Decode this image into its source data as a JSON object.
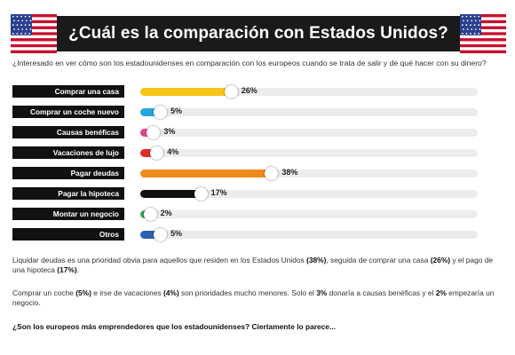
{
  "title": "¿Cuál es la comparación con Estados Unidos?",
  "intro": "¿Interesado en ver cómo son los estadounidenses en comparación con los europeos cuando se trata de salir y de qué hacer con su dinero?",
  "colors": {
    "banner": "#1a1a1a",
    "track": "#ececec",
    "flag_red": "#c8102e",
    "flag_blue": "#2a3f8f"
  },
  "chart_data": {
    "type": "bar",
    "orientation": "horizontal",
    "xlim": [
      0,
      100
    ],
    "unit": "%",
    "categories": [
      "Comprar una casa",
      "Comprar un coche nuevo",
      "Causas benéficas",
      "Vacaciones de lujo",
      "Pagar deudas",
      "Pagar la hipoteca",
      "Montar un negocio",
      "Otros"
    ],
    "values": [
      26,
      5,
      3,
      4,
      38,
      17,
      2,
      5
    ],
    "labels": [
      "26%",
      "5%",
      "3%",
      "4%",
      "38%",
      "17%",
      "2%",
      "5%"
    ],
    "bar_colors": [
      "#f5c518",
      "#2aa4e0",
      "#e0478a",
      "#e02b2b",
      "#f08a1c",
      "#111111",
      "#3aa655",
      "#2a62b0"
    ]
  },
  "paragraphs": [
    [
      "Liquidar deudas es una prioridad obvia para aquellos que residen en los Estados Unidos ",
      "(38%)",
      ", seguida de comprar una casa ",
      "(26%)",
      " y el pago de una hipoteca ",
      "(17%)",
      "."
    ],
    [
      "Comprar un coche ",
      "(5%)",
      " e irse de vacaciones ",
      "(4%)",
      " son prioridades mucho menores. Solo el ",
      "3%",
      " donaría a causas benéficas y el ",
      "2%",
      " empezaría un negocio."
    ]
  ],
  "closing": "¿Son los europeos más emprendedores que los estadounidenses? Ciertamente lo parece..."
}
